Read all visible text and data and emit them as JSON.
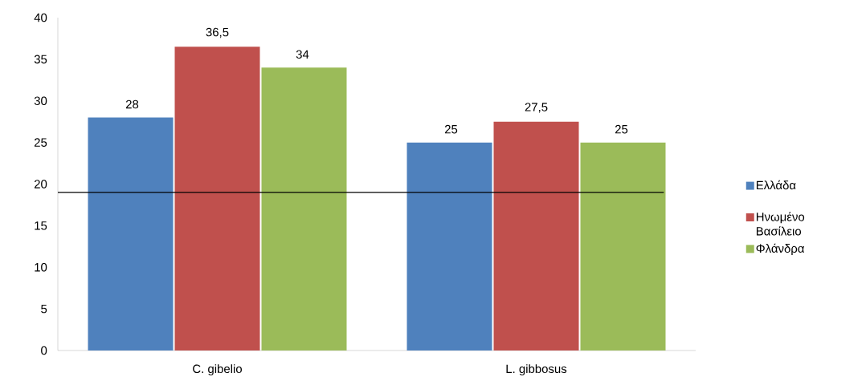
{
  "chart_data": {
    "type": "bar",
    "categories": [
      "C. gibelio",
      "L. gibbosus"
    ],
    "series": [
      {
        "name": "Ελλάδα",
        "color": "#4f81bd",
        "values": [
          28,
          25
        ],
        "value_labels": [
          "28",
          "25"
        ]
      },
      {
        "name": "Ηνωμένο Βασίλειο",
        "color": "#c0504d",
        "values": [
          36.5,
          27.5
        ],
        "value_labels": [
          "36,5",
          "27,5"
        ]
      },
      {
        "name": "Φλάνδρα",
        "color": "#9bbb59",
        "values": [
          34,
          25
        ],
        "value_labels": [
          "34",
          "25"
        ]
      }
    ],
    "ylim": [
      0,
      40
    ],
    "yticks": [
      0,
      5,
      10,
      15,
      20,
      25,
      30,
      35,
      40
    ],
    "legend": "right",
    "ref_lines": [
      {
        "axis": "y",
        "value": 19,
        "color": "#000000"
      }
    ]
  }
}
